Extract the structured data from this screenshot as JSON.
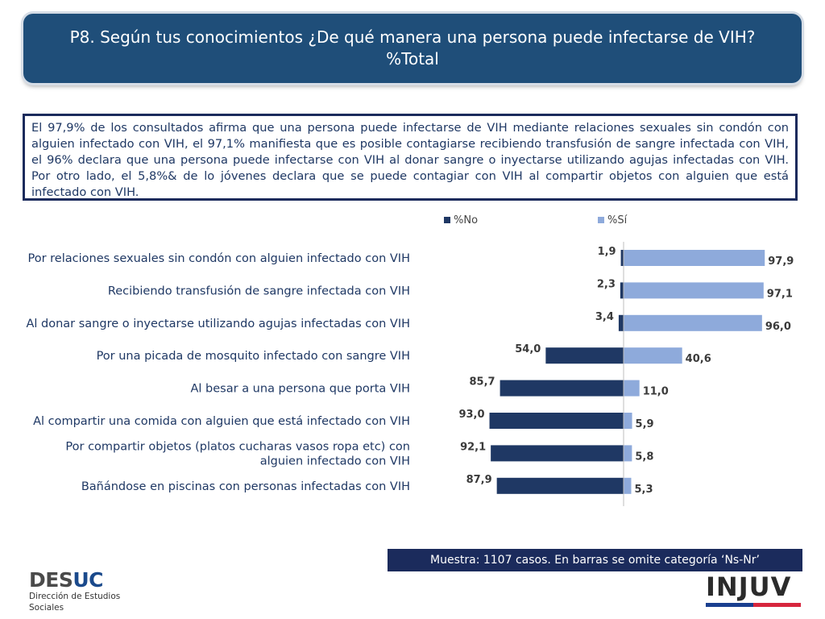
{
  "title": "P8. Según tus conocimientos ¿De qué manera una persona puede infectarse de VIH? %Total",
  "summary": "El 97,9% de los consultados afirma que una persona puede infectarse de VIH mediante relaciones sexuales sin condón con alguien infectado con VIH, el 97,1% manifiesta que es posible contagiarse recibiendo transfusión de sangre infectada con VIH, el 96% declara que una persona puede infectarse con VIH al donar sangre o inyectarse utilizando agujas infectadas con VIH. Por otro lado, el 5,8%& de lo jóvenes declara que se puede contagiar con VIH al compartir objetos con alguien que está infectado con VIH.",
  "footnote": "Muestra: 1107 casos. En barras se omite categoría ‘Ns-Nr’",
  "logos": {
    "desuc_part1": "DES",
    "desuc_part2": "UC",
    "desuc_subtitle": "Dirección de Estudios Sociales",
    "injuv": "INJUV"
  },
  "chart_data": {
    "type": "bar",
    "orientation": "horizontal-diverging",
    "categories": [
      "Por relaciones sexuales sin condón con alguien infectado con VIH",
      "Recibiendo transfusión de sangre infectada con VIH",
      "Al donar sangre o inyectarse utilizando agujas infectadas con VIH",
      "Por una picada de mosquito infectado con sangre VIH",
      "Al besar a una persona que porta VIH",
      "Al compartir una comida con alguien que está infectado con VIH",
      "Por compartir objetos (platos cucharas vasos ropa etc) con alguien infectado con VIH",
      "Bañándose en piscinas con personas infectadas con VIH"
    ],
    "series": [
      {
        "name": "%No",
        "color": "#1f3864",
        "values": [
          1.9,
          2.3,
          3.4,
          54.0,
          85.7,
          93.0,
          92.1,
          87.9
        ],
        "labels": [
          "1,9",
          "2,3",
          "3,4",
          "54,0",
          "85,7",
          "93,0",
          "92,1",
          "87,9"
        ]
      },
      {
        "name": "%Sí",
        "color": "#8eaadb",
        "values": [
          97.9,
          97.1,
          96.0,
          40.6,
          11.0,
          5.9,
          5.8,
          5.3
        ],
        "labels": [
          "97,9",
          "97,1",
          "96,0",
          "40,6",
          "11,0",
          "5,9",
          "5,8",
          "5,3"
        ]
      }
    ],
    "legend_position": "top",
    "grid": false
  }
}
